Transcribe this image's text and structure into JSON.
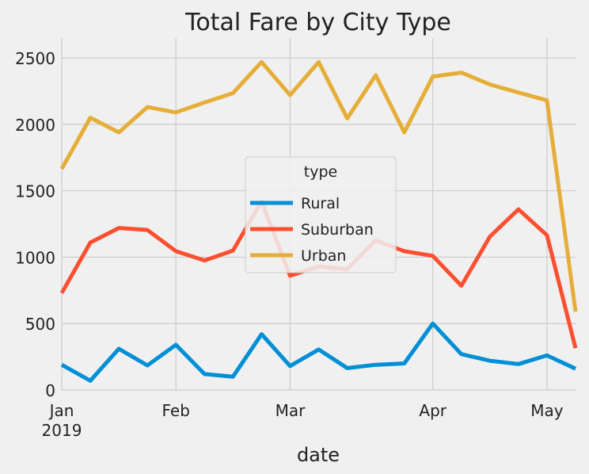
{
  "chart_data": {
    "type": "line",
    "title": "Total Fare by City Type",
    "xlabel": "date",
    "ylabel": "",
    "x": [
      "2019-01-06",
      "2019-01-13",
      "2019-01-20",
      "2019-01-27",
      "2019-02-03",
      "2019-02-10",
      "2019-02-17",
      "2019-02-24",
      "2019-03-03",
      "2019-03-10",
      "2019-03-17",
      "2019-03-24",
      "2019-03-31",
      "2019-04-07",
      "2019-04-14",
      "2019-04-21",
      "2019-04-28",
      "2019-05-05",
      "2019-05-12"
    ],
    "xlim": [
      "2019-01-06",
      "2019-05-12"
    ],
    "x_ticks": [
      {
        "date": "2019-01-06",
        "label": "Jan",
        "sublabel": "2019"
      },
      {
        "date": "2019-02-03",
        "label": "Feb",
        "sublabel": ""
      },
      {
        "date": "2019-03-03",
        "label": "Mar",
        "sublabel": ""
      },
      {
        "date": "2019-04-07",
        "label": "Apr",
        "sublabel": ""
      },
      {
        "date": "2019-05-05",
        "label": "May",
        "sublabel": ""
      }
    ],
    "ylim": [
      0,
      2650
    ],
    "yticks": [
      0,
      500,
      1000,
      1500,
      2000,
      2500
    ],
    "grid": true,
    "legend": {
      "title": "type",
      "placement": "center"
    },
    "series": [
      {
        "name": "Rural",
        "color": "#008fd5",
        "values": [
          190,
          70,
          310,
          185,
          340,
          120,
          100,
          420,
          180,
          305,
          165,
          190,
          200,
          500,
          270,
          220,
          195,
          260,
          160
        ]
      },
      {
        "name": "Suburban",
        "color": "#fc4f30",
        "values": [
          730,
          1110,
          1220,
          1205,
          1045,
          975,
          1050,
          1420,
          860,
          930,
          910,
          1125,
          1045,
          1010,
          785,
          1155,
          1360,
          1165,
          315
        ]
      },
      {
        "name": "Urban",
        "color": "#e5ae38",
        "values": [
          1665,
          2050,
          1940,
          2130,
          2090,
          2165,
          2235,
          2470,
          2220,
          2470,
          2045,
          2370,
          1940,
          2360,
          2390,
          2300,
          2240,
          2180,
          590
        ]
      }
    ]
  }
}
